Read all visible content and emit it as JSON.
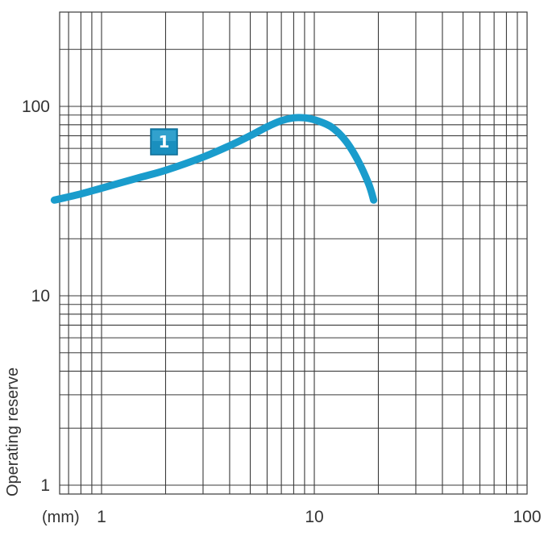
{
  "chart_data": {
    "type": "line",
    "xscale": "log",
    "yscale": "log",
    "xlim": [
      0.5,
      100
    ],
    "ylim": [
      1,
      300
    ],
    "grid": true,
    "xlabel": "(mm)",
    "ylabel": "Operating reserve",
    "x_ticks": [
      "1",
      "10",
      "100"
    ],
    "y_ticks": [
      "1",
      "10",
      "100"
    ],
    "series": [
      {
        "name": "1",
        "color": "#1a9ccc",
        "x": [
          0.6,
          0.8,
          1.0,
          1.5,
          2.0,
          3.0,
          4.0,
          5.0,
          6.0,
          7.0,
          8.0,
          9.0,
          10.0,
          12.0,
          14.0,
          16.0,
          18.0,
          19.0
        ],
        "y": [
          32,
          34.5,
          37,
          42,
          46,
          54,
          62,
          70,
          78,
          84,
          87,
          87,
          85,
          78,
          66,
          52,
          39,
          32
        ]
      }
    ]
  }
}
